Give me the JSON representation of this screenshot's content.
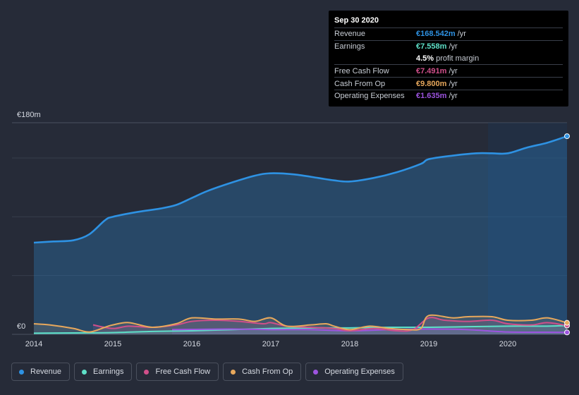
{
  "chart_data": {
    "type": "line",
    "y_axis": {
      "top_label": "€180m",
      "bottom_label": "€0",
      "ylim": [
        0,
        180
      ]
    },
    "x_ticks": [
      "2014",
      "2015",
      "2016",
      "2017",
      "2018",
      "2019",
      "2020"
    ],
    "series": [
      {
        "key": "revenue",
        "name": "Revenue",
        "color": "#2e92e3",
        "points": [
          [
            2014.0,
            78
          ],
          [
            2014.25,
            79
          ],
          [
            2014.5,
            80
          ],
          [
            2014.7,
            85
          ],
          [
            2014.9,
            97
          ],
          [
            2015.0,
            100
          ],
          [
            2015.3,
            104
          ],
          [
            2015.6,
            107
          ],
          [
            2015.8,
            110
          ],
          [
            2016.0,
            116
          ],
          [
            2016.2,
            122
          ],
          [
            2016.5,
            129
          ],
          [
            2016.8,
            135
          ],
          [
            2017.0,
            137
          ],
          [
            2017.3,
            136
          ],
          [
            2017.6,
            133
          ],
          [
            2017.8,
            131
          ],
          [
            2018.0,
            130
          ],
          [
            2018.3,
            133
          ],
          [
            2018.6,
            138
          ],
          [
            2018.9,
            145
          ],
          [
            2019.0,
            149
          ],
          [
            2019.3,
            152
          ],
          [
            2019.6,
            154
          ],
          [
            2019.8,
            154
          ],
          [
            2020.0,
            154
          ],
          [
            2020.25,
            159
          ],
          [
            2020.5,
            163
          ],
          [
            2020.75,
            168.542
          ]
        ]
      },
      {
        "key": "earnings",
        "name": "Earnings",
        "color": "#5ee0c8",
        "points": [
          [
            2014.0,
            1
          ],
          [
            2014.5,
            1.2
          ],
          [
            2015.0,
            1.5
          ],
          [
            2015.5,
            2.5
          ],
          [
            2016.0,
            3
          ],
          [
            2016.5,
            4
          ],
          [
            2017.0,
            5
          ],
          [
            2017.5,
            5.5
          ],
          [
            2018.0,
            5.5
          ],
          [
            2018.5,
            6
          ],
          [
            2019.0,
            6
          ],
          [
            2019.5,
            6.5
          ],
          [
            2020.0,
            7
          ],
          [
            2020.5,
            7
          ],
          [
            2020.75,
            7.558
          ]
        ]
      },
      {
        "key": "fcf",
        "name": "Free Cash Flow",
        "color": "#d04f8a",
        "points": [
          [
            2014.75,
            8
          ],
          [
            2015.0,
            5
          ],
          [
            2015.2,
            7
          ],
          [
            2015.5,
            6
          ],
          [
            2015.8,
            8
          ],
          [
            2016.0,
            11
          ],
          [
            2016.3,
            12
          ],
          [
            2016.6,
            11
          ],
          [
            2016.9,
            9
          ],
          [
            2017.0,
            10
          ],
          [
            2017.2,
            7
          ],
          [
            2017.5,
            6
          ],
          [
            2017.8,
            5
          ],
          [
            2018.0,
            3
          ],
          [
            2018.3,
            5
          ],
          [
            2018.6,
            3
          ],
          [
            2018.8,
            4
          ],
          [
            2019.0,
            14
          ],
          [
            2019.2,
            12
          ],
          [
            2019.5,
            11
          ],
          [
            2019.8,
            12
          ],
          [
            2020.0,
            9
          ],
          [
            2020.3,
            8
          ],
          [
            2020.5,
            10
          ],
          [
            2020.75,
            7.491
          ]
        ]
      },
      {
        "key": "cfo",
        "name": "Cash From Op",
        "color": "#e8a85c",
        "points": [
          [
            2014.0,
            9
          ],
          [
            2014.2,
            8
          ],
          [
            2014.5,
            5
          ],
          [
            2014.7,
            2
          ],
          [
            2014.9,
            6
          ],
          [
            2015.0,
            8
          ],
          [
            2015.2,
            10
          ],
          [
            2015.5,
            6
          ],
          [
            2015.8,
            9
          ],
          [
            2016.0,
            14
          ],
          [
            2016.3,
            13
          ],
          [
            2016.6,
            13
          ],
          [
            2016.8,
            11
          ],
          [
            2017.0,
            14
          ],
          [
            2017.2,
            7
          ],
          [
            2017.5,
            8
          ],
          [
            2017.7,
            9
          ],
          [
            2017.8,
            7
          ],
          [
            2018.0,
            4
          ],
          [
            2018.25,
            7
          ],
          [
            2018.5,
            5
          ],
          [
            2018.75,
            4
          ],
          [
            2018.9,
            5
          ],
          [
            2019.0,
            16
          ],
          [
            2019.3,
            14
          ],
          [
            2019.5,
            15
          ],
          [
            2019.8,
            15
          ],
          [
            2020.0,
            12
          ],
          [
            2020.3,
            12
          ],
          [
            2020.5,
            14
          ],
          [
            2020.75,
            9.8
          ]
        ]
      },
      {
        "key": "opex",
        "name": "Operating Expenses",
        "color": "#9d54e0",
        "points": [
          [
            2015.75,
            4
          ],
          [
            2016.0,
            4.2
          ],
          [
            2016.5,
            4.5
          ],
          [
            2017.0,
            4
          ],
          [
            2017.5,
            4
          ],
          [
            2018.0,
            3
          ],
          [
            2018.5,
            4
          ],
          [
            2019.0,
            4.5
          ],
          [
            2019.5,
            4
          ],
          [
            2020.0,
            2
          ],
          [
            2020.5,
            1.8
          ],
          [
            2020.75,
            1.635
          ]
        ]
      }
    ],
    "forecast_band_start": 2019.75
  },
  "tooltip": {
    "date": "Sep 30 2020",
    "unit": "/yr",
    "rows": {
      "revenue": {
        "label": "Revenue",
        "value": "€168.542m",
        "color": "#2e92e3"
      },
      "earnings": {
        "label": "Earnings",
        "value": "€7.558m",
        "color": "#5ee0c8"
      },
      "margin": {
        "value": "4.5%",
        "text": "profit margin"
      },
      "fcf": {
        "label": "Free Cash Flow",
        "value": "€7.491m",
        "color": "#d04f8a"
      },
      "cfo": {
        "label": "Cash From Op",
        "value": "€9.800m",
        "color": "#e8a85c"
      },
      "opex": {
        "label": "Operating Expenses",
        "value": "€1.635m",
        "color": "#9d54e0"
      }
    }
  },
  "legend": [
    {
      "label": "Revenue",
      "color": "#2e92e3"
    },
    {
      "label": "Earnings",
      "color": "#5ee0c8"
    },
    {
      "label": "Free Cash Flow",
      "color": "#d04f8a"
    },
    {
      "label": "Cash From Op",
      "color": "#e8a85c"
    },
    {
      "label": "Operating Expenses",
      "color": "#9d54e0"
    }
  ]
}
